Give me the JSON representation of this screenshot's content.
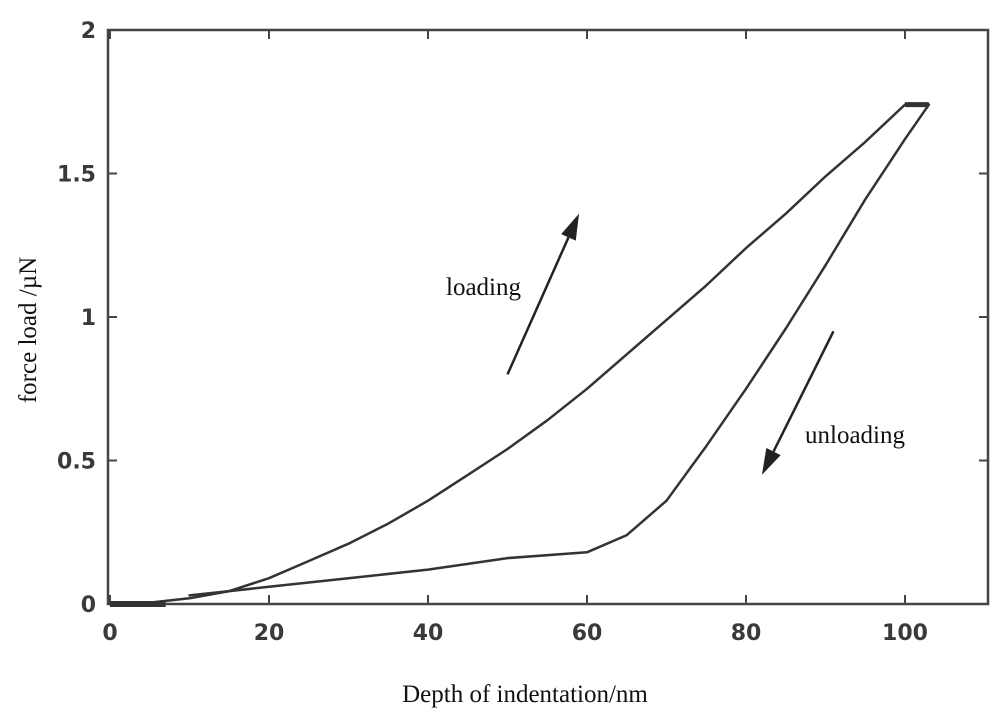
{
  "chart_data": {
    "type": "line",
    "title": "",
    "xlabel": "Depth of indentation/nm",
    "ylabel": "force load /µN",
    "xlim": [
      0,
      110
    ],
    "ylim": [
      0,
      2
    ],
    "xticks": [
      0,
      20,
      40,
      60,
      80,
      100
    ],
    "xtick_labels": [
      "0",
      "20",
      "40",
      "60",
      "80",
      "100"
    ],
    "yticks": [
      0,
      0.5,
      1,
      1.5,
      2
    ],
    "ytick_labels": [
      "0",
      "0.5",
      "1",
      "1.5",
      "2"
    ],
    "grid": false,
    "series": [
      {
        "name": "loading",
        "x": [
          0,
          5,
          10,
          15,
          20,
          25,
          30,
          35,
          40,
          45,
          50,
          55,
          60,
          65,
          70,
          75,
          80,
          85,
          90,
          95,
          100
        ],
        "y": [
          0,
          0.005,
          0.02,
          0.045,
          0.09,
          0.15,
          0.21,
          0.28,
          0.36,
          0.45,
          0.54,
          0.64,
          0.75,
          0.87,
          0.99,
          1.11,
          1.24,
          1.36,
          1.49,
          1.61,
          1.74
        ]
      },
      {
        "name": "unloading",
        "x": [
          103,
          100,
          95,
          90,
          85,
          80,
          75,
          70,
          65,
          60,
          50,
          40,
          30,
          20,
          15,
          10
        ],
        "y": [
          1.74,
          1.62,
          1.41,
          1.18,
          0.96,
          0.75,
          0.55,
          0.36,
          0.24,
          0.18,
          0.16,
          0.12,
          0.09,
          0.06,
          0.045,
          0.03
        ]
      }
    ],
    "annotations": [
      {
        "text": "loading",
        "x": 40,
        "y": 1.1
      },
      {
        "text": "unloading",
        "x": 95,
        "y": 0.57
      }
    ],
    "arrows": [
      {
        "from": [
          50,
          0.8
        ],
        "to": [
          59,
          1.36
        ]
      },
      {
        "from": [
          91,
          0.95
        ],
        "to": [
          82,
          0.45
        ]
      }
    ]
  }
}
